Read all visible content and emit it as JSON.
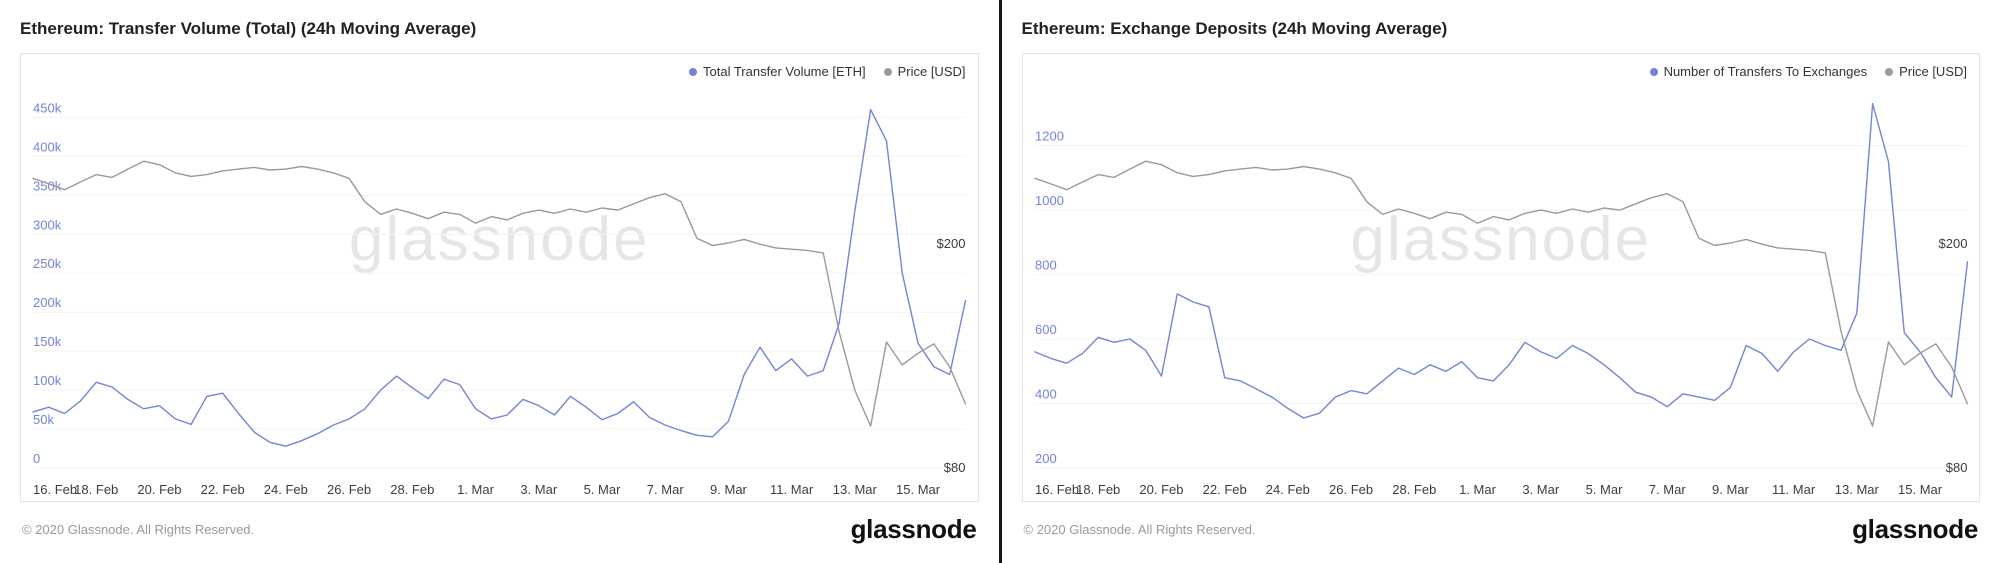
{
  "divider_color": "#161616",
  "panels": [
    {
      "watermark": "glassnode",
      "footer_copyright": "© 2020 Glassnode. All Rights Reserved.",
      "footer_logo": "glassnode"
    },
    {
      "watermark": "glassnode",
      "footer_copyright": "© 2020 Glassnode. All Rights Reserved.",
      "footer_logo": "glassnode"
    }
  ],
  "chart_data": [
    {
      "type": "line",
      "title": "Ethereum: Transfer Volume (Total) (24h Moving Average)",
      "legend_position": "top-right",
      "grid": "horizontal-faint",
      "x_tick_labels": [
        "16. Feb",
        "18. Feb",
        "20. Feb",
        "22. Feb",
        "24. Feb",
        "26. Feb",
        "28. Feb",
        "1. Mar",
        "3. Mar",
        "5. Mar",
        "7. Mar",
        "9. Mar",
        "11. Mar",
        "13. Mar",
        "15. Mar"
      ],
      "x_tick_days": [
        0,
        2,
        4,
        6,
        8,
        10,
        12,
        14,
        16,
        18,
        20,
        22,
        24,
        26,
        28
      ],
      "x_total_days": 29.5,
      "x_step_days": 0.5,
      "x_label_color": "#3d3d3d",
      "y_left": {
        "label": "Total Transfer Volume [ETH]",
        "scale": "linear",
        "min": 0,
        "max": 480000,
        "ticks": [
          0,
          50000,
          100000,
          150000,
          200000,
          250000,
          300000,
          350000,
          400000,
          450000
        ],
        "tick_labels": [
          "0",
          "50k",
          "100k",
          "150k",
          "200k",
          "250k",
          "300k",
          "350k",
          "400k",
          "450k"
        ],
        "label_color": "#7484d6"
      },
      "y_right": {
        "label": "Price [USD]",
        "scale": "log",
        "min": 80,
        "max": 370,
        "ticks": [
          80,
          200
        ],
        "tick_labels": [
          "$80",
          "$200"
        ],
        "label_color": "#3d3d3d"
      },
      "series": [
        {
          "name": "Total Transfer Volume [ETH]",
          "axis": "left",
          "color": "#7484d6",
          "values": [
            72000,
            78000,
            70000,
            86000,
            110000,
            104000,
            88000,
            76000,
            80000,
            63000,
            56000,
            92000,
            96000,
            70000,
            46000,
            33000,
            28000,
            35000,
            44000,
            55000,
            63000,
            76000,
            100000,
            118000,
            103000,
            89000,
            114000,
            107000,
            76000,
            63000,
            68000,
            88000,
            80000,
            68000,
            92000,
            78000,
            62000,
            70000,
            85000,
            65000,
            55000,
            48000,
            42000,
            40000,
            60000,
            120000,
            155000,
            125000,
            140000,
            118000,
            125000,
            185000,
            330000,
            460000,
            420000,
            250000,
            160000,
            130000,
            120000,
            215000
          ]
        },
        {
          "name": "Price [USD]",
          "axis": "right",
          "color": "#9a9a9a",
          "values": [
            262,
            256,
            250,
            258,
            266,
            263,
            272,
            281,
            277,
            268,
            264,
            266,
            270,
            272,
            274,
            271,
            272,
            275,
            272,
            268,
            262,
            238,
            226,
            231,
            227,
            222,
            228,
            226,
            218,
            224,
            221,
            227,
            230,
            227,
            231,
            228,
            232,
            230,
            236,
            242,
            246,
            238,
            205,
            199,
            201,
            204,
            200,
            197,
            196,
            195,
            193,
            140,
            110,
            95,
            134,
            122,
            128,
            133,
            121,
            104
          ]
        }
      ]
    },
    {
      "type": "line",
      "title": "Ethereum: Exchange Deposits (24h Moving Average)",
      "legend_position": "top-right",
      "grid": "horizontal-faint",
      "x_tick_labels": [
        "16. Feb",
        "18. Feb",
        "20. Feb",
        "22. Feb",
        "24. Feb",
        "26. Feb",
        "28. Feb",
        "1. Mar",
        "3. Mar",
        "5. Mar",
        "7. Mar",
        "9. Mar",
        "11. Mar",
        "13. Mar",
        "15. Mar"
      ],
      "x_tick_days": [
        0,
        2,
        4,
        6,
        8,
        10,
        12,
        14,
        16,
        18,
        20,
        22,
        24,
        26,
        28
      ],
      "x_total_days": 29.5,
      "x_step_days": 0.5,
      "x_label_color": "#3d3d3d",
      "y_left": {
        "label": "Number of Transfers To Exchanges",
        "scale": "linear",
        "min": 200,
        "max": 1360,
        "ticks": [
          200,
          400,
          600,
          800,
          1000,
          1200
        ],
        "tick_labels": [
          "200",
          "400",
          "600",
          "800",
          "1000",
          "1200"
        ],
        "label_color": "#7484d6"
      },
      "y_right": {
        "label": "Price [USD]",
        "scale": "log",
        "min": 80,
        "max": 370,
        "ticks": [
          80,
          200
        ],
        "tick_labels": [
          "$80",
          "$200"
        ],
        "label_color": "#3d3d3d"
      },
      "series": [
        {
          "name": "Number of Transfers To Exchanges",
          "axis": "left",
          "color": "#7484d6",
          "values": [
            560,
            540,
            525,
            555,
            605,
            590,
            600,
            565,
            485,
            740,
            715,
            700,
            480,
            470,
            445,
            420,
            385,
            355,
            370,
            420,
            440,
            430,
            470,
            510,
            490,
            520,
            500,
            530,
            480,
            470,
            520,
            590,
            560,
            540,
            580,
            555,
            520,
            480,
            435,
            420,
            390,
            430,
            420,
            410,
            450,
            580,
            555,
            500,
            560,
            600,
            580,
            565,
            680,
            1330,
            1150,
            620,
            560,
            480,
            420,
            840
          ]
        },
        {
          "name": "Price [USD]",
          "axis": "right",
          "color": "#9a9a9a",
          "values": [
            262,
            256,
            250,
            258,
            266,
            263,
            272,
            281,
            277,
            268,
            264,
            266,
            270,
            272,
            274,
            271,
            272,
            275,
            272,
            268,
            262,
            238,
            226,
            231,
            227,
            222,
            228,
            226,
            218,
            224,
            221,
            227,
            230,
            227,
            231,
            228,
            232,
            230,
            236,
            242,
            246,
            238,
            205,
            199,
            201,
            204,
            200,
            197,
            196,
            195,
            193,
            140,
            110,
            95,
            134,
            122,
            128,
            133,
            121,
            104
          ]
        }
      ]
    }
  ]
}
